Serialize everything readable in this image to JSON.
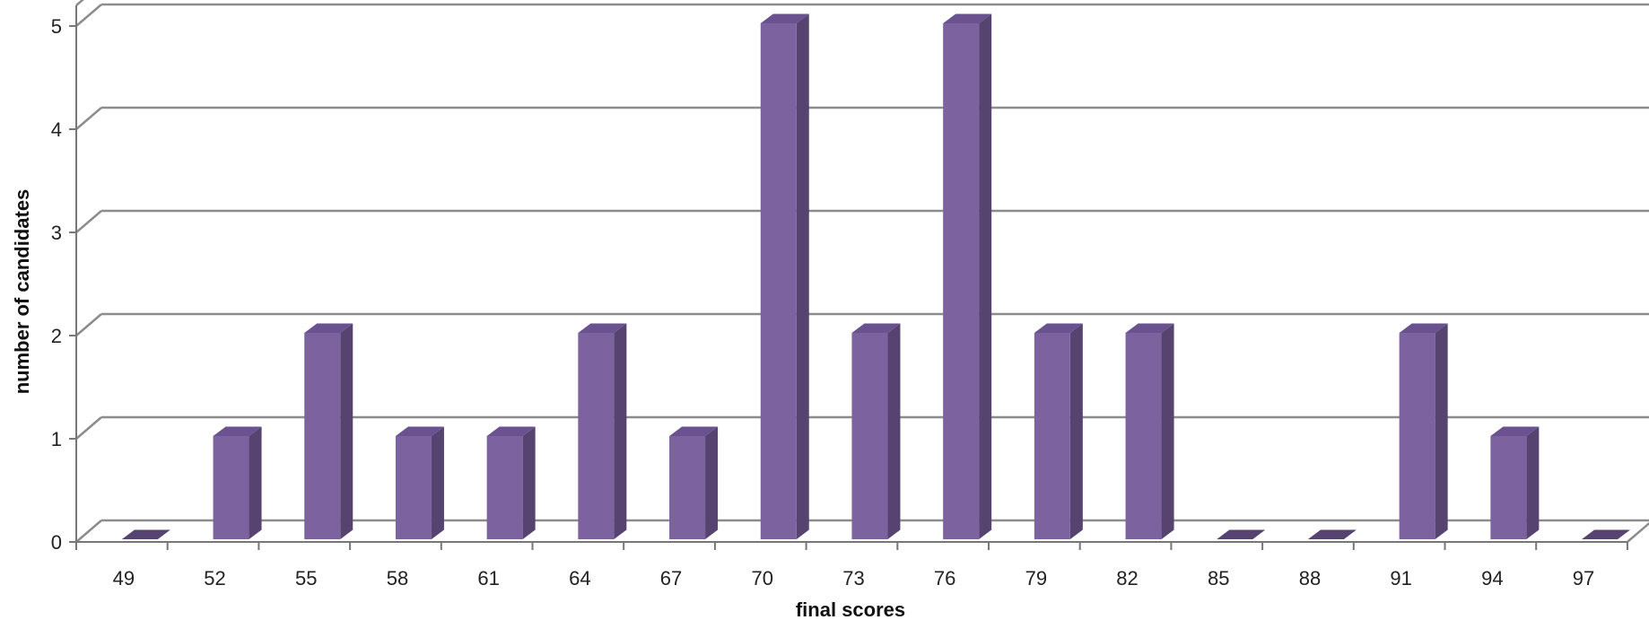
{
  "chart_data": {
    "type": "bar",
    "categories": [
      "49",
      "52",
      "55",
      "58",
      "61",
      "64",
      "67",
      "70",
      "73",
      "76",
      "79",
      "82",
      "85",
      "88",
      "91",
      "94",
      "97"
    ],
    "values": [
      0,
      1,
      2,
      1,
      1,
      2,
      1,
      5,
      2,
      5,
      2,
      2,
      0,
      0,
      2,
      1,
      0
    ],
    "title": "",
    "xlabel": "final scores",
    "ylabel": "number of candidates",
    "ylim": [
      0,
      5
    ],
    "yticks": [
      "0",
      "1",
      "2",
      "3",
      "4",
      "5"
    ],
    "grid": true,
    "legend": "none",
    "style": "3d-column",
    "colors": {
      "bar_front": "#7D62A0",
      "bar_side": "#56436F",
      "bar_top": "#6A5290",
      "gridline": "#8C8C8C"
    }
  }
}
